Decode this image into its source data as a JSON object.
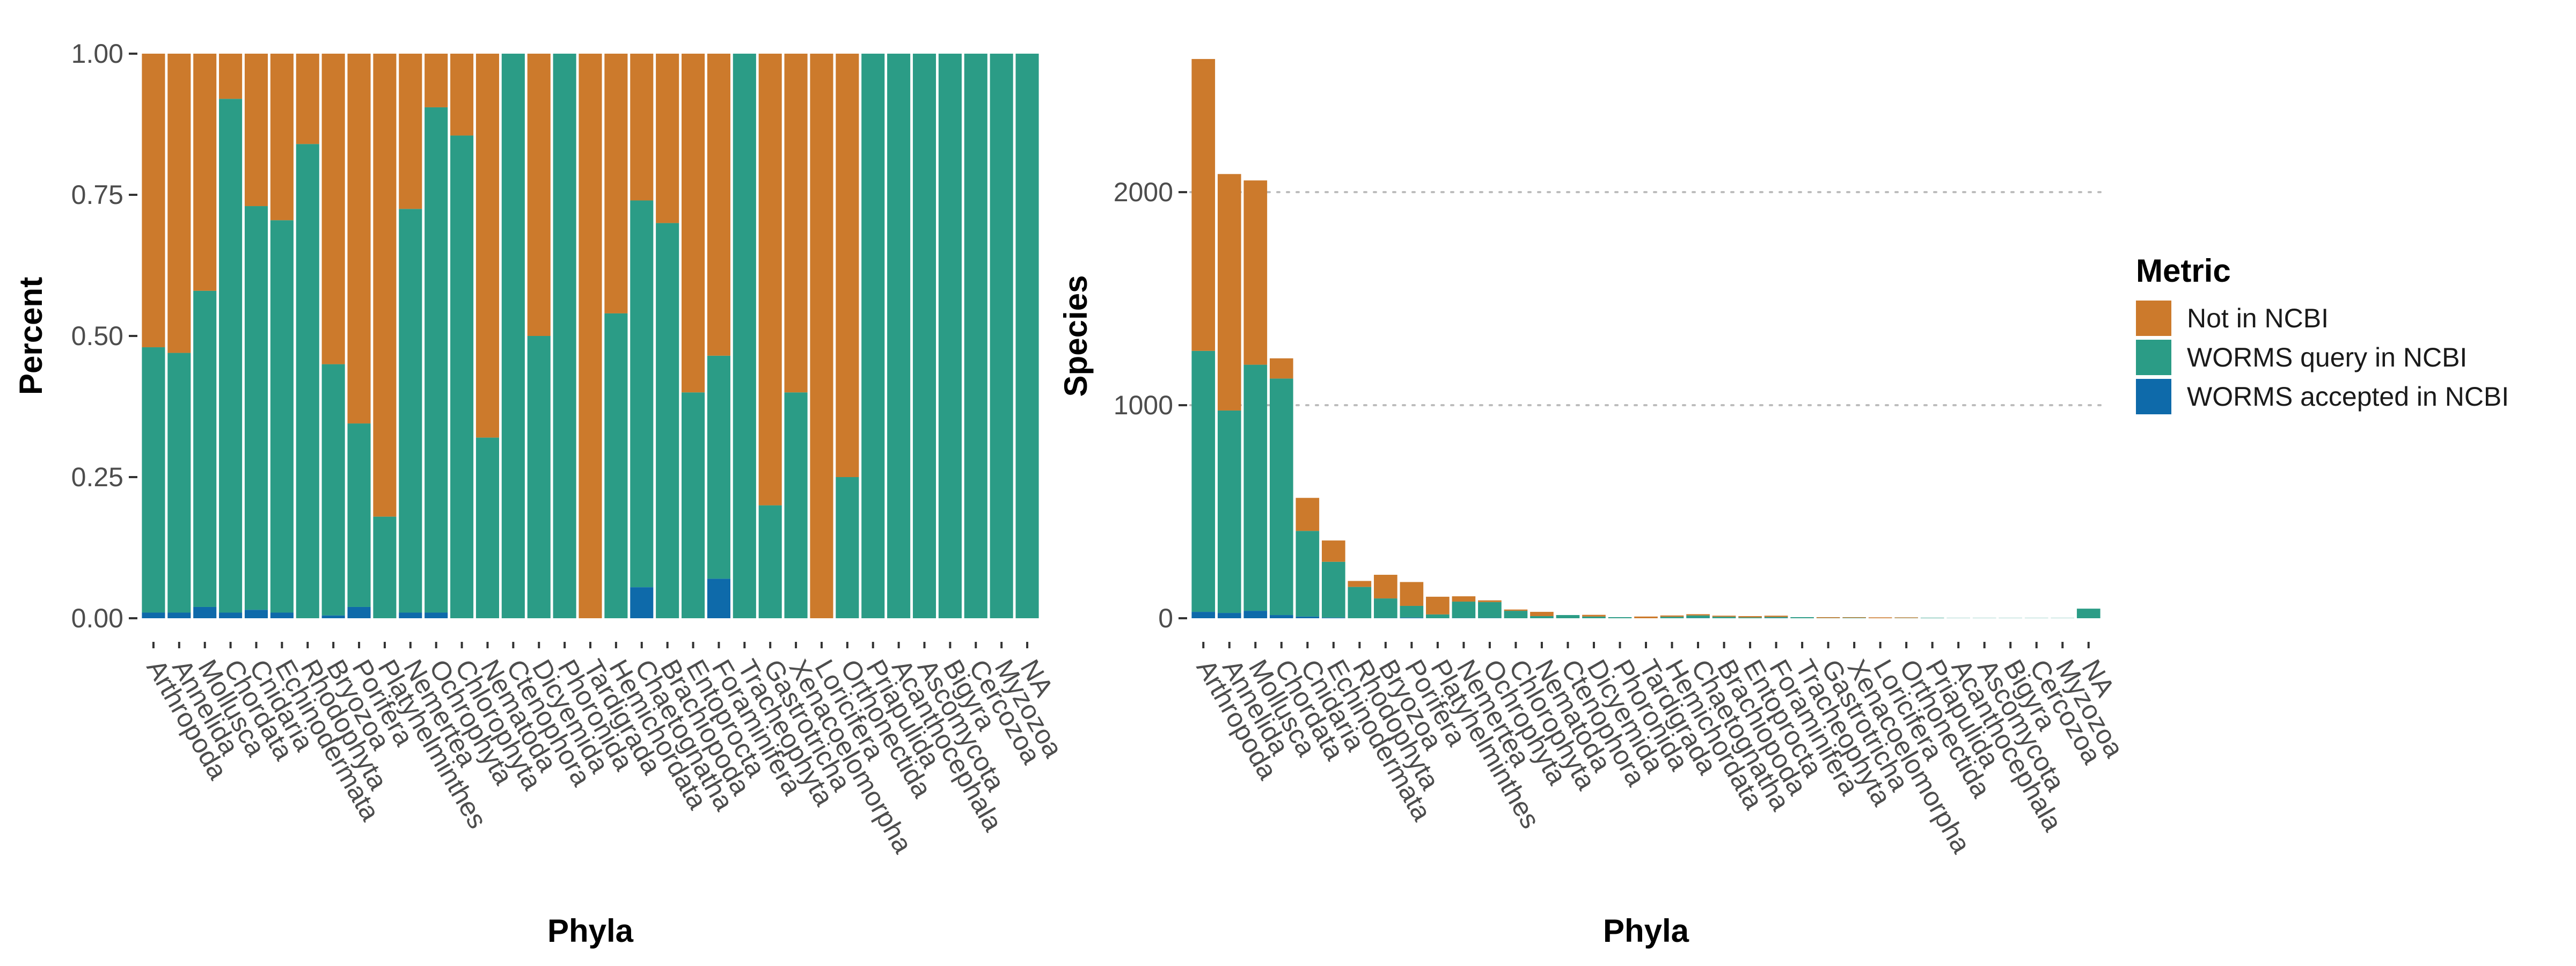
{
  "colors": {
    "not_in_ncbi": "#CC7A2C",
    "worms_query": "#2B9C86",
    "worms_accepted": "#0E6AAA",
    "grid": "#bdbdbd",
    "tick_text": "#4d4d4d"
  },
  "legend": {
    "title": "Metric",
    "items": [
      {
        "key": "not_in_ncbi",
        "label": "Not in NCBI"
      },
      {
        "key": "worms_query",
        "label": "WORMS query in NCBI"
      },
      {
        "key": "worms_accepted",
        "label": "WORMS accepted in NCBI"
      }
    ],
    "placement": "right"
  },
  "chart_data": [
    {
      "type": "bar",
      "stacked": true,
      "xlabel": "Phyla",
      "ylabel": "Percent",
      "ylim": [
        0,
        1
      ],
      "yticks": [
        0,
        0.25,
        0.5,
        0.75,
        1
      ],
      "ytick_labels": [
        "0.00",
        "0.25",
        "0.50",
        "0.75",
        "1.00"
      ],
      "grid": false,
      "categories": [
        "Arthropoda",
        "Annelida",
        "Mollusca",
        "Chordata",
        "Cnidaria",
        "Echinodermata",
        "Rhodophyta",
        "Bryozoa",
        "Porifera",
        "Platyhelminthes",
        "Nemertea",
        "Ochrophyta",
        "Chlorophyta",
        "Nematoda",
        "Ctenophora",
        "Dicyemida",
        "Phoronida",
        "Tardigrada",
        "Hemichordata",
        "Chaetognatha",
        "Brachiopoda",
        "Entoprocta",
        "Foraminifera",
        "Tracheophyta",
        "Gastrotricha",
        "Xenacoelomorpha",
        "Loricifera",
        "Orthonectida",
        "Priapulida",
        "Acanthocephala",
        "Ascomycota",
        "Bigyra",
        "Cercozoa",
        "Myzozoa",
        "NA"
      ],
      "series": [
        {
          "key": "worms_accepted",
          "values": [
            0.01,
            0.01,
            0.02,
            0.01,
            0.015,
            0.01,
            0,
            0.005,
            0.02,
            0,
            0.01,
            0.01,
            0,
            0,
            0,
            0,
            0,
            0,
            0,
            0.055,
            0,
            0,
            0.07,
            0,
            0,
            0,
            0,
            0,
            0,
            0,
            0,
            0,
            0,
            0,
            0
          ]
        },
        {
          "key": "worms_query",
          "values": [
            0.47,
            0.46,
            0.56,
            0.91,
            0.715,
            0.695,
            0.84,
            0.445,
            0.325,
            0.18,
            0.715,
            0.895,
            0.855,
            0.32,
            1,
            0.5,
            1,
            0,
            0.54,
            0.685,
            0.7,
            0.4,
            0.395,
            1,
            0.2,
            0.4,
            0,
            0.25,
            1,
            1,
            1,
            1,
            1,
            1,
            1
          ]
        },
        {
          "key": "not_in_ncbi",
          "values": [
            0.52,
            0.53,
            0.42,
            0.08,
            0.27,
            0.295,
            0.16,
            0.55,
            0.655,
            0.82,
            0.275,
            0.095,
            0.145,
            0.68,
            0,
            0.5,
            0,
            1,
            0.46,
            0.26,
            0.3,
            0.6,
            0.535,
            0,
            0.8,
            0.6,
            1,
            0.75,
            0,
            0,
            0,
            0,
            0,
            0,
            0
          ]
        }
      ]
    },
    {
      "type": "bar",
      "stacked": true,
      "xlabel": "Phyla",
      "ylabel": "Species",
      "ylim": [
        0,
        2650
      ],
      "yticks": [
        0,
        1000,
        2000
      ],
      "ytick_labels": [
        "0",
        "1000",
        "2000"
      ],
      "grid": true,
      "categories": [
        "Arthropoda",
        "Annelida",
        "Mollusca",
        "Chordata",
        "Cnidaria",
        "Echinodermata",
        "Rhodophyta",
        "Bryozoa",
        "Porifera",
        "Platyhelminthes",
        "Nemertea",
        "Ochrophyta",
        "Chlorophyta",
        "Nematoda",
        "Ctenophora",
        "Dicyemida",
        "Phoronida",
        "Tardigrada",
        "Hemichordata",
        "Chaetognatha",
        "Brachiopoda",
        "Entoprocta",
        "Foraminifera",
        "Tracheophyta",
        "Gastrotricha",
        "Xenacoelomorpha",
        "Loricifera",
        "Orthonectida",
        "Priapulida",
        "Acanthocephala",
        "Ascomycota",
        "Bigyra",
        "Cercozoa",
        "Myzozoa",
        "NA"
      ],
      "series": [
        {
          "key": "worms_accepted",
          "values": [
            30,
            25,
            35,
            15,
            8,
            3,
            0,
            1,
            3,
            0,
            1,
            1,
            0,
            0,
            0,
            0,
            0,
            0,
            0,
            1,
            0,
            0,
            1,
            0,
            0,
            0,
            0,
            0,
            0,
            0,
            0,
            0,
            0,
            0,
            0
          ]
        },
        {
          "key": "worms_query",
          "values": [
            1225,
            950,
            1155,
            1110,
            402,
            262,
            147,
            92,
            55,
            18,
            77,
            75,
            35,
            10,
            15,
            8,
            5,
            0,
            7,
            12,
            7,
            4,
            5,
            5,
            1,
            2,
            0,
            1,
            2,
            1,
            1,
            1,
            1,
            1,
            45
          ]
        },
        {
          "key": "not_in_ncbi",
          "values": [
            1370,
            1110,
            865,
            95,
            155,
            100,
            28,
            111,
            112,
            83,
            25,
            8,
            6,
            20,
            0,
            8,
            0,
            8,
            6,
            6,
            5,
            6,
            6,
            0,
            4,
            3,
            4,
            3,
            0,
            0,
            0,
            0,
            0,
            0,
            0
          ]
        }
      ]
    }
  ]
}
